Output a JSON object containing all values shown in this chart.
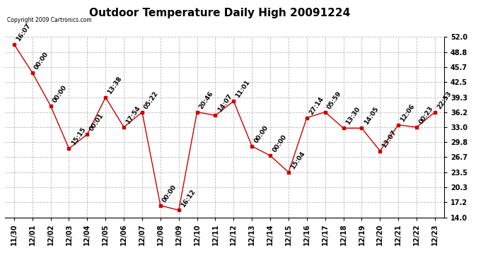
{
  "title": "Outdoor Temperature Daily High 20091224",
  "copyright": "Copyright 2009 Cartronics.com",
  "x_labels": [
    "11/30",
    "12/01",
    "12/02",
    "12/03",
    "12/04",
    "12/05",
    "12/06",
    "12/07",
    "12/08",
    "12/09",
    "12/10",
    "12/11",
    "12/12",
    "12/13",
    "12/14",
    "12/15",
    "12/16",
    "12/17",
    "12/18",
    "12/19",
    "12/20",
    "12/21",
    "12/22",
    "12/23"
  ],
  "y_values": [
    50.5,
    44.5,
    37.5,
    28.5,
    31.5,
    39.3,
    33.0,
    36.2,
    16.5,
    15.5,
    36.2,
    35.5,
    38.5,
    29.0,
    27.0,
    23.5,
    35.0,
    36.2,
    32.8,
    32.8,
    28.0,
    33.5,
    33.0,
    36.2
  ],
  "annotations": [
    "16:07",
    "00:00",
    "00:00",
    "15:15",
    "00:01",
    "13:38",
    "17:54",
    "05:22",
    "00:00",
    "16:12",
    "20:46",
    "14:07",
    "11:01",
    "00:00",
    "00:00",
    "15:04",
    "27:14",
    "05:59",
    "13:30",
    "14:05",
    "13:07",
    "12:06",
    "00:23",
    "22:53"
  ],
  "ylim": [
    14.0,
    52.0
  ],
  "yticks": [
    14.0,
    17.2,
    20.3,
    23.5,
    26.7,
    29.8,
    33.0,
    36.2,
    39.3,
    42.5,
    45.7,
    48.8,
    52.0
  ],
  "ytick_labels": [
    "14.0",
    "17.2",
    "20.3",
    "23.5",
    "26.7",
    "29.8",
    "33.0",
    "36.2",
    "39.3",
    "42.5",
    "45.7",
    "48.8",
    "52.0"
  ],
  "line_color": "#cc0000",
  "marker_color": "#cc0000",
  "grid_color": "#bbbbbb",
  "bg_color": "#ffffff",
  "title_fontsize": 11,
  "annotation_fontsize": 6.5,
  "tick_fontsize": 7.0
}
